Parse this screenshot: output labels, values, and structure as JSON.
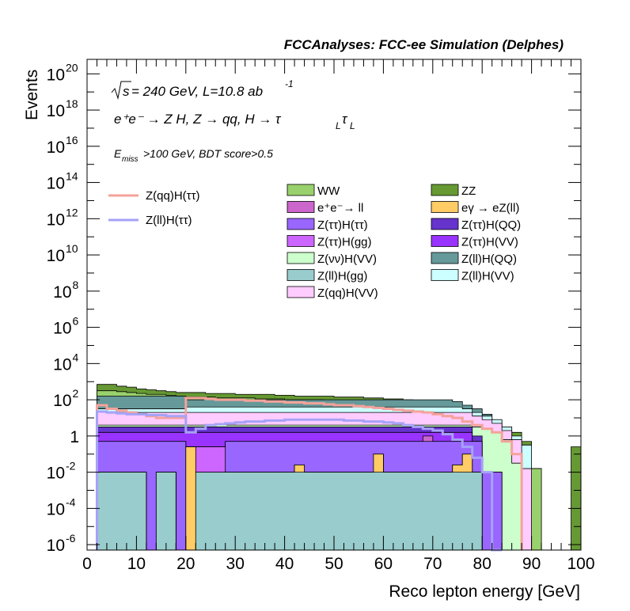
{
  "header": {
    "title": "FCCAnalyses: FCC-ee Simulation (Delphes)"
  },
  "annotations": {
    "energy_sqrt": "s",
    "energy_text": " = 240 GeV, L=10.8 ab",
    "energy_exp": "-1",
    "process_text": "e⁺e⁻ → Z H, Z → qq, H → τ",
    "process_sub1": "L",
    "process_tau2": "τ",
    "process_sub2": "L",
    "selection_E": "E",
    "selection_sub": "miss",
    "selection_text": ">100 GeV, BDT score>0.5"
  },
  "colors": {
    "sig1": "#f4a29a",
    "sig2": "#a6a2f7",
    "WW": "#99d16c",
    "ZZ": "#669933",
    "ee_ll": "#cc66cc",
    "egamma": "#ffcc66",
    "Ztautau_Htautau": "#9966ff",
    "Ztautau_HQQ": "#6633cc",
    "Ztautau_Hgg": "#cc66ff",
    "Ztautau_HVV": "#9933ff",
    "Znunu_HVV": "#ccffcc",
    "Zll_HQQ": "#669999",
    "Zll_Hgg": "#99cccc",
    "Zll_HVV": "#ccffff",
    "Zqq_HVV": "#ffccff"
  },
  "chart_data": {
    "type": "histogram",
    "title": "FCCAnalyses: FCC-ee Simulation (Delphes)",
    "xlabel": "Reco lepton energy [GeV]",
    "ylabel": "Events",
    "xlim": [
      0,
      100
    ],
    "ylim_log10": [
      -6.3,
      20.8
    ],
    "x_ticks": [
      0,
      10,
      20,
      30,
      40,
      50,
      60,
      70,
      80,
      90,
      100
    ],
    "y_ticks": [
      {
        "label": "10",
        "exp": "-6",
        "log": -6
      },
      {
        "label": "10",
        "exp": "-4",
        "log": -4
      },
      {
        "label": "10",
        "exp": "-2",
        "log": -2
      },
      {
        "label": "1",
        "exp": "",
        "log": 0
      },
      {
        "label": "10",
        "exp": "2",
        "log": 2
      },
      {
        "label": "10",
        "exp": "4",
        "log": 4
      },
      {
        "label": "10",
        "exp": "6",
        "log": 6
      },
      {
        "label": "10",
        "exp": "8",
        "log": 8
      },
      {
        "label": "10",
        "exp": "10",
        "log": 10
      },
      {
        "label": "10",
        "exp": "12",
        "log": 12
      },
      {
        "label": "10",
        "exp": "14",
        "log": 14
      },
      {
        "label": "10",
        "exp": "16",
        "log": 16
      },
      {
        "label": "10",
        "exp": "18",
        "log": 18
      },
      {
        "label": "10",
        "exp": "20",
        "log": 20
      }
    ],
    "stack_edges": [
      2,
      4,
      6,
      8,
      10,
      12,
      14,
      16,
      18,
      20,
      22,
      24,
      26,
      28,
      30,
      32,
      34,
      36,
      38,
      40,
      42,
      44,
      46,
      48,
      50,
      52,
      54,
      56,
      58,
      60,
      62,
      64,
      66,
      68,
      70,
      72,
      74,
      76,
      78,
      80,
      82,
      84,
      86,
      88,
      90,
      92
    ],
    "stack": [
      {
        "name": "Z(ll)H(gg)",
        "key": "Zll_Hgg",
        "log10_tops": [
          -2.0,
          -2.0,
          -2.0,
          -2.0,
          -2.0,
          -6.5,
          -2.0,
          -2.0,
          -6.5,
          -6.5,
          -2.0,
          -2.0,
          -2.0,
          -2.0,
          -2.0,
          -2.0,
          -2.0,
          -2.0,
          -2.0,
          -2.0,
          -2.0,
          -2.0,
          -2.0,
          -2.0,
          -2.0,
          -2.0,
          -2.0,
          -2.0,
          -2.0,
          -2.0,
          -2.0,
          -2.0,
          -2.0,
          -2.0,
          -2.0,
          -2.0,
          -2.0,
          -2.0,
          -2.0,
          -6.5,
          -6.5,
          -6.5,
          -6.5,
          -6.5,
          -6.5
        ]
      },
      {
        "name": "eγ → eZ(ll)",
        "key": "egamma",
        "log10_tops": [
          -2.0,
          -2.0,
          -2.0,
          -2.0,
          -2.0,
          -6.5,
          -2.0,
          -2.0,
          -6.5,
          -0.6,
          -2.0,
          -2.0,
          -2.0,
          -2.0,
          -2.0,
          -2.0,
          -2.0,
          -2.0,
          -2.0,
          -2.0,
          -1.6,
          -2.0,
          -2.0,
          -2.0,
          -2.0,
          -2.0,
          -2.0,
          -2.0,
          -1.0,
          -2.0,
          -2.0,
          -2.0,
          -2.0,
          -2.0,
          -2.0,
          -2.0,
          -1.6,
          -1.0,
          -2.0,
          -6.5,
          -6.5,
          -6.5,
          -6.5,
          -6.5,
          -6.5
        ]
      },
      {
        "name": "Z(ττ)H(gg)",
        "key": "Ztautau_Hgg",
        "log10_tops": [
          -2.0,
          -2.0,
          -2.0,
          -2.0,
          -2.0,
          -6.5,
          -2.0,
          -2.0,
          -6.5,
          -0.6,
          -0.6,
          -0.6,
          -0.6,
          -2.0,
          -2.0,
          -2.0,
          -2.0,
          -2.0,
          -2.0,
          -2.0,
          -1.6,
          -2.0,
          -2.0,
          -2.0,
          -2.0,
          -2.0,
          -2.0,
          -2.0,
          -1.0,
          -2.0,
          -2.0,
          -2.0,
          -2.0,
          -2.0,
          -2.0,
          -2.0,
          -1.6,
          -1.0,
          -2.0,
          -6.5,
          -6.5,
          -6.5,
          -6.5,
          -6.5,
          -6.5
        ]
      },
      {
        "name": "Z(ττ)H(ττ)",
        "key": "Ztautau_Htautau",
        "log10_tops": [
          -0.3,
          -0.3,
          -0.3,
          -0.3,
          -0.3,
          -0.3,
          -0.3,
          -0.3,
          -0.3,
          -0.6,
          -0.6,
          -0.6,
          -0.6,
          -0.3,
          -0.3,
          -0.3,
          -0.3,
          -0.3,
          -0.3,
          -0.3,
          -0.3,
          -0.3,
          -0.3,
          -0.3,
          -0.3,
          -0.3,
          -0.3,
          -0.3,
          -0.3,
          -0.3,
          -0.3,
          -0.3,
          -0.3,
          -0.3,
          -0.3,
          -0.3,
          -0.3,
          -0.3,
          -0.3,
          -2.0,
          -2.0,
          -6.5,
          -6.5,
          -6.5,
          -6.5
        ]
      },
      {
        "name": "e⁺e⁻→ ll",
        "key": "ee_ll",
        "log10_tops": [
          -0.3,
          -0.3,
          -0.3,
          -0.3,
          -0.3,
          -0.3,
          -0.3,
          -0.3,
          -0.3,
          -0.6,
          -0.6,
          -0.6,
          -0.6,
          -0.3,
          -0.3,
          -0.3,
          -0.3,
          -0.3,
          -0.3,
          -0.3,
          -0.3,
          -0.3,
          -0.3,
          -0.3,
          -0.3,
          -0.3,
          -0.3,
          -0.3,
          -0.3,
          -0.3,
          -0.3,
          -0.3,
          -0.3,
          0.0,
          -0.3,
          -0.3,
          -0.3,
          -0.3,
          -0.3,
          -2.0,
          -2.0,
          -6.5,
          -6.5,
          -6.5,
          -6.5
        ]
      },
      {
        "name": "Z(ττ)H(VV)",
        "key": "Ztautau_HVV",
        "log10_tops": [
          0.2,
          0.2,
          0.2,
          0.2,
          0.2,
          0.2,
          0.2,
          0.2,
          0.2,
          0.2,
          0.2,
          0.2,
          0.2,
          0.2,
          0.2,
          0.2,
          0.2,
          0.2,
          0.2,
          0.2,
          0.2,
          0.2,
          0.2,
          0.2,
          0.2,
          0.2,
          0.2,
          0.2,
          0.2,
          0.2,
          0.2,
          0.2,
          0.2,
          0.2,
          0.2,
          0.2,
          0.2,
          0.2,
          -0.3,
          -2.0,
          -2.0,
          -6.5,
          -6.5,
          -6.5,
          -6.5
        ]
      },
      {
        "name": "Z(ττ)H(QQ)",
        "key": "Ztautau_HQQ",
        "log10_tops": [
          0.5,
          0.5,
          0.5,
          0.5,
          0.5,
          0.5,
          0.5,
          0.5,
          0.5,
          0.5,
          0.5,
          0.5,
          0.5,
          0.5,
          0.5,
          0.5,
          0.5,
          0.5,
          0.5,
          0.5,
          0.5,
          0.5,
          0.5,
          0.5,
          0.5,
          0.5,
          0.5,
          0.5,
          0.5,
          0.5,
          0.5,
          0.5,
          0.5,
          0.5,
          0.5,
          0.5,
          0.5,
          0.5,
          0.0,
          -2.0,
          -2.0,
          -6.5,
          -6.5,
          -6.5,
          -6.5
        ]
      },
      {
        "name": "Z(νν)H(VV)",
        "key": "Znunu_HVV",
        "log10_tops": [
          0.6,
          0.6,
          0.6,
          0.6,
          0.6,
          0.6,
          0.6,
          0.6,
          0.6,
          0.6,
          0.6,
          0.6,
          0.6,
          0.6,
          0.6,
          0.6,
          0.6,
          0.6,
          0.6,
          0.6,
          0.6,
          0.6,
          0.6,
          0.6,
          0.6,
          0.6,
          0.6,
          0.6,
          0.6,
          0.6,
          0.6,
          0.6,
          0.6,
          0.6,
          0.6,
          0.6,
          0.6,
          0.6,
          0.5,
          0.4,
          0.2,
          -0.2,
          -1.5,
          -6.5,
          -6.5
        ]
      },
      {
        "name": "Z(qq)H(VV)",
        "key": "Zqq_HVV",
        "log10_tops": [
          1.3,
          1.3,
          1.3,
          1.3,
          1.3,
          1.3,
          1.3,
          1.3,
          1.3,
          1.3,
          1.3,
          1.3,
          1.3,
          1.3,
          1.3,
          1.3,
          1.3,
          1.3,
          1.3,
          1.3,
          1.3,
          1.3,
          1.3,
          1.3,
          1.3,
          1.3,
          1.3,
          1.3,
          1.3,
          1.3,
          1.3,
          1.3,
          1.3,
          1.3,
          1.3,
          1.3,
          1.3,
          1.3,
          1.1,
          0.9,
          0.7,
          0.3,
          -0.2,
          -1.8,
          -6.5
        ]
      },
      {
        "name": "Z(ll)H(VV)",
        "key": "Zll_HVV",
        "log10_tops": [
          1.5,
          1.5,
          1.5,
          1.5,
          1.5,
          1.5,
          1.5,
          1.5,
          1.5,
          1.6,
          1.6,
          1.6,
          1.6,
          1.6,
          1.6,
          1.6,
          1.6,
          1.6,
          1.6,
          1.6,
          1.6,
          1.6,
          1.6,
          1.6,
          1.6,
          1.6,
          1.6,
          1.6,
          1.6,
          1.6,
          1.6,
          1.6,
          1.6,
          1.6,
          1.6,
          1.6,
          1.6,
          1.5,
          1.3,
          1.1,
          0.9,
          0.5,
          0.0,
          -0.5,
          -6.5
        ]
      },
      {
        "name": "Z(ll)H(QQ)",
        "key": "Zll_HQQ",
        "log10_tops": [
          2.2,
          2.2,
          2.2,
          2.2,
          2.2,
          2.2,
          2.2,
          2.2,
          2.2,
          2.0,
          2.0,
          2.0,
          2.0,
          2.0,
          2.0,
          2.0,
          2.0,
          2.0,
          2.0,
          2.0,
          2.0,
          2.0,
          2.0,
          2.0,
          2.0,
          2.0,
          2.0,
          2.0,
          2.0,
          2.0,
          2.0,
          2.0,
          2.0,
          2.0,
          2.0,
          2.0,
          1.9,
          1.7,
          1.5,
          1.2,
          0.9,
          0.5,
          0.0,
          -0.5,
          -6.5
        ]
      },
      {
        "name": "WW",
        "key": "WW",
        "log10_tops": [
          2.5,
          2.5,
          2.45,
          2.4,
          2.35,
          2.3,
          2.3,
          2.25,
          2.2,
          2.15,
          2.15,
          2.15,
          2.1,
          2.1,
          2.1,
          2.1,
          2.05,
          2.05,
          2.05,
          2.0,
          2.0,
          2.0,
          2.0,
          1.95,
          1.95,
          1.9,
          1.9,
          1.9,
          1.85,
          1.85,
          1.8,
          1.8,
          1.75,
          1.7,
          1.65,
          1.6,
          1.5,
          1.3,
          1.1,
          0.9,
          0.6,
          0.3,
          -0.2,
          -0.8,
          -1.8
        ]
      },
      {
        "name": "ZZ",
        "key": "ZZ",
        "log10_tops": [
          2.85,
          2.85,
          2.75,
          2.7,
          2.6,
          2.55,
          2.5,
          2.45,
          2.4,
          2.4,
          2.4,
          2.35,
          2.35,
          2.35,
          2.3,
          2.3,
          2.3,
          2.3,
          2.25,
          2.25,
          2.2,
          2.2,
          2.2,
          2.2,
          2.15,
          2.15,
          2.15,
          2.1,
          2.1,
          2.05,
          2.05,
          2.0,
          1.95,
          1.9,
          1.85,
          1.75,
          1.65,
          1.45,
          1.25,
          1.0,
          0.7,
          0.3,
          0.2,
          -0.3,
          -1.8
        ]
      }
    ],
    "zz_tail": {
      "x": [
        98,
        100
      ],
      "log10_top": -0.6
    },
    "signals": [
      {
        "name": "Z(qq)H(ττ)",
        "key": "sig1",
        "x": [
          2,
          4,
          6,
          8,
          10,
          12,
          14,
          16,
          18,
          20,
          22,
          24,
          26,
          28,
          30,
          32,
          34,
          36,
          38,
          40,
          42,
          44,
          46,
          48,
          50,
          52,
          54,
          56,
          58,
          60,
          62,
          64,
          66,
          68,
          70,
          72,
          74,
          76,
          78,
          80,
          82,
          84,
          86,
          88
        ],
        "log10_y": [
          1.7,
          1.5,
          1.4,
          1.3,
          1.2,
          1.1,
          1.0,
          1.0,
          1.0,
          2.1,
          2.1,
          2.05,
          2.0,
          2.0,
          2.0,
          1.95,
          1.95,
          1.9,
          1.9,
          1.85,
          1.85,
          1.8,
          1.8,
          1.75,
          1.7,
          1.7,
          1.65,
          1.6,
          1.55,
          1.5,
          1.45,
          1.4,
          1.35,
          1.3,
          1.2,
          1.1,
          1.0,
          0.8,
          0.6,
          0.4,
          0.2,
          -0.3,
          -1.0
        ]
      },
      {
        "name": "Z(ll)H(ττ)",
        "key": "sig2",
        "x": [
          2,
          4,
          6,
          8,
          10,
          12,
          14,
          16,
          18,
          20,
          22,
          24,
          26,
          28,
          30,
          32,
          34,
          36,
          38,
          40,
          42,
          44,
          46,
          48,
          50,
          52,
          54,
          56,
          58,
          60,
          62,
          64,
          66,
          68,
          70,
          72,
          74,
          76,
          78,
          80,
          82,
          84
        ],
        "log10_y": [
          1.35,
          1.3,
          1.25,
          1.2,
          1.2,
          1.15,
          1.15,
          1.1,
          1.1,
          0.2,
          0.4,
          0.6,
          0.65,
          0.7,
          0.75,
          0.8,
          0.8,
          0.85,
          0.85,
          0.9,
          0.9,
          0.9,
          0.9,
          0.9,
          0.9,
          0.85,
          0.85,
          0.8,
          0.8,
          0.75,
          0.7,
          0.6,
          0.5,
          0.4,
          0.3,
          0.1,
          -0.2,
          -0.6,
          -1.2,
          -2.0,
          -6.5
        ]
      }
    ],
    "legend": [
      {
        "name": "WW",
        "key": "WW"
      },
      {
        "name": "ZZ",
        "key": "ZZ"
      },
      {
        "name": "e⁺e⁻→ ll",
        "key": "ee_ll"
      },
      {
        "name": "eγ → eZ(ll)",
        "key": "egamma"
      },
      {
        "name": "Z(ττ)H(ττ)",
        "key": "Ztautau_Htautau"
      },
      {
        "name": "Z(ττ)H(QQ)",
        "key": "Ztautau_HQQ"
      },
      {
        "name": "Z(ττ)H(gg)",
        "key": "Ztautau_Hgg"
      },
      {
        "name": "Z(ττ)H(VV)",
        "key": "Ztautau_HVV"
      },
      {
        "name": "Z(νν)H(VV)",
        "key": "Znunu_HVV"
      },
      {
        "name": "Z(ll)H(QQ)",
        "key": "Zll_HQQ"
      },
      {
        "name": "Z(ll)H(gg)",
        "key": "Zll_Hgg"
      },
      {
        "name": "Z(ll)H(VV)",
        "key": "Zll_HVV"
      },
      {
        "name": "Z(qq)H(VV)",
        "key": "Zqq_HVV"
      }
    ],
    "signal_legend": [
      {
        "name": "Z(qq)H(ττ)",
        "key": "sig1"
      },
      {
        "name": "Z(ll)H(ττ)",
        "key": "sig2"
      }
    ]
  }
}
